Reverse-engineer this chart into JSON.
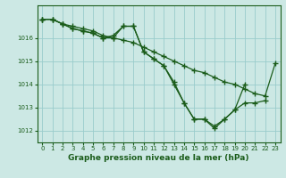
{
  "title": "Graphe pression niveau de la mer (hPa)",
  "title_fontsize": 6.5,
  "bg_color": "#cce8e4",
  "grid_color": "#99cccc",
  "line_color": "#1a5c1a",
  "marker": "+",
  "markersize": 4,
  "linewidth": 0.9,
  "markeredgewidth": 1.0,
  "xlim": [
    -0.5,
    23.5
  ],
  "ylim": [
    1011.5,
    1017.4
  ],
  "yticks": [
    1012,
    1013,
    1014,
    1015,
    1016
  ],
  "xticks": [
    0,
    1,
    2,
    3,
    4,
    5,
    6,
    7,
    8,
    9,
    10,
    11,
    12,
    13,
    14,
    15,
    16,
    17,
    18,
    19,
    20,
    21,
    22,
    23
  ],
  "tick_fontsize": 5.0,
  "series": [
    [
      1016.8,
      1016.8,
      1016.6,
      1016.5,
      1016.4,
      1016.3,
      1016.1,
      1016.0,
      1015.9,
      1015.8,
      1015.6,
      1015.4,
      1015.2,
      1015.0,
      1014.8,
      1014.6,
      1014.5,
      1014.3,
      1014.1,
      1014.0,
      1013.8,
      1013.6,
      1013.5,
      1014.9
    ],
    [
      1016.8,
      1016.8,
      1016.6,
      1016.4,
      1016.3,
      1016.2,
      1016.0,
      1016.1,
      1016.5,
      1016.5,
      1015.4,
      1015.1,
      1014.8,
      1014.1,
      1013.2,
      1012.5,
      1012.5,
      1012.2,
      1012.5,
      1012.9,
      1013.2,
      1013.2,
      1013.3,
      null
    ],
    [
      1016.8,
      1016.8,
      1016.6,
      1016.4,
      1016.3,
      1016.2,
      1016.0,
      1016.0,
      1016.5,
      1016.5,
      1015.4,
      1015.1,
      1014.8,
      1014.0,
      1013.2,
      1012.5,
      1012.5,
      1012.1,
      1012.5,
      1012.9,
      1014.0,
      null,
      null,
      null
    ]
  ]
}
